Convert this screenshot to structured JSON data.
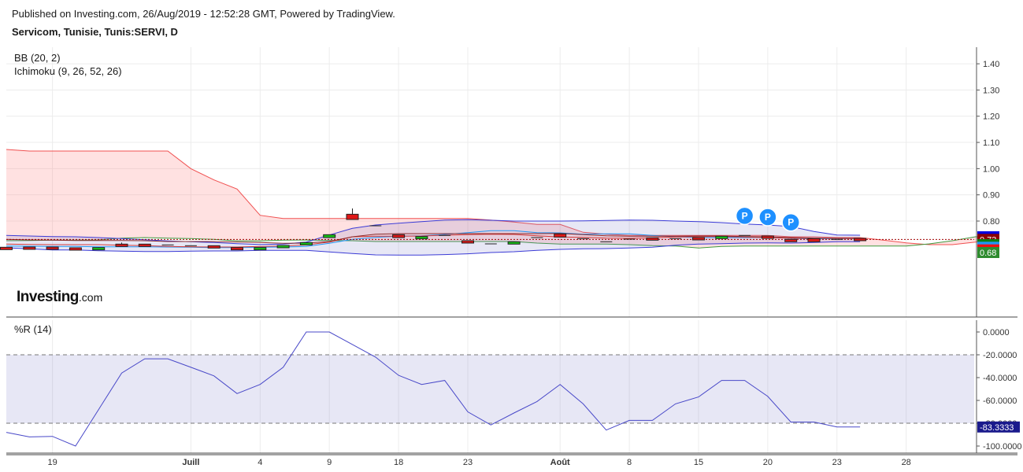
{
  "header": {
    "published": "Published on Investing.com, 26/Aug/2019 - 12:52:28 GMT, Powered by TradingView.",
    "symbol": "Servicom, Tunisie, Tunis:SERVI, D"
  },
  "indicators": {
    "bb": "BB (20, 2)",
    "ichimoku": "Ichimoku (9, 26, 52, 26)",
    "wr": "%R (14)"
  },
  "watermark": {
    "main": "Investing",
    "suffix": ".com"
  },
  "chart_data": [
    {
      "type": "candlestick",
      "title": "Servicom, Tunisie, Tunis:SERVI, D",
      "x_tick_labels": [
        "19",
        "Juill",
        "4",
        "9",
        "18",
        "23",
        "Août",
        "8",
        "15",
        "20",
        "23",
        "28"
      ],
      "x_tick_index": [
        2,
        8,
        11,
        14,
        17,
        20,
        24,
        27,
        30,
        33,
        36,
        39
      ],
      "y_ticks": [
        "1.40",
        "1.30",
        "1.20",
        "1.10",
        "1.00",
        "0.90",
        "0.80"
      ],
      "ylim": [
        0.675,
        1.44
      ],
      "price_labels": [
        {
          "text": "0.74",
          "value": 0.74,
          "color": "#0000dd"
        },
        {
          "text": "0.73",
          "value": 0.73,
          "color": "#8b0000"
        },
        {
          "text": "0.71",
          "value": 0.71,
          "color": "#0f7d0f"
        },
        {
          "text": "0.70",
          "value": 0.7,
          "color": "#2196f3"
        },
        {
          "text": "0.69",
          "value": 0.69,
          "color": "#ee1111"
        },
        {
          "text": "0.69",
          "value": 0.685,
          "color": "#ee1111"
        },
        {
          "text": "0.68",
          "value": 0.68,
          "color": "#2e8b2e"
        }
      ],
      "last_price_line": 0.73,
      "candles": [
        {
          "o": 0.7,
          "h": 0.7,
          "l": 0.696,
          "c": 0.698
        },
        {
          "o": 0.701,
          "h": 0.701,
          "l": 0.698,
          "c": 0.699
        },
        {
          "o": 0.701,
          "h": 0.701,
          "l": 0.698,
          "c": 0.699
        },
        {
          "o": 0.698,
          "h": 0.698,
          "l": 0.694,
          "c": 0.695
        },
        {
          "o": 0.694,
          "h": 0.7,
          "l": 0.694,
          "c": 0.699
        },
        {
          "o": 0.712,
          "h": 0.718,
          "l": 0.705,
          "c": 0.706
        },
        {
          "o": 0.712,
          "h": 0.712,
          "l": 0.707,
          "c": 0.709
        },
        {
          "o": 0.709,
          "h": 0.709,
          "l": 0.709,
          "c": 0.709
        },
        {
          "o": 0.706,
          "h": 0.706,
          "l": 0.706,
          "c": 0.706
        },
        {
          "o": 0.706,
          "h": 0.706,
          "l": 0.704,
          "c": 0.704
        },
        {
          "o": 0.699,
          "h": 0.699,
          "l": 0.697,
          "c": 0.697
        },
        {
          "o": 0.697,
          "h": 0.699,
          "l": 0.697,
          "c": 0.699
        },
        {
          "o": 0.705,
          "h": 0.707,
          "l": 0.705,
          "c": 0.707
        },
        {
          "o": 0.716,
          "h": 0.718,
          "l": 0.716,
          "c": 0.718
        },
        {
          "o": 0.737,
          "h": 0.748,
          "l": 0.737,
          "c": 0.748
        },
        {
          "o": 0.826,
          "h": 0.848,
          "l": 0.806,
          "c": 0.806
        },
        {
          "o": 0.782,
          "h": 0.782,
          "l": 0.782,
          "c": 0.782
        },
        {
          "o": 0.748,
          "h": 0.748,
          "l": 0.737,
          "c": 0.737
        },
        {
          "o": 0.732,
          "h": 0.741,
          "l": 0.732,
          "c": 0.741
        },
        {
          "o": 0.745,
          "h": 0.745,
          "l": 0.745,
          "c": 0.745
        },
        {
          "o": 0.725,
          "h": 0.725,
          "l": 0.721,
          "c": 0.721
        },
        {
          "o": 0.713,
          "h": 0.713,
          "l": 0.713,
          "c": 0.713
        },
        {
          "o": 0.714,
          "h": 0.721,
          "l": 0.714,
          "c": 0.721
        },
        {
          "o": 0.737,
          "h": 0.737,
          "l": 0.737,
          "c": 0.737
        },
        {
          "o": 0.751,
          "h": 0.751,
          "l": 0.739,
          "c": 0.739
        },
        {
          "o": 0.733,
          "h": 0.733,
          "l": 0.733,
          "c": 0.733
        },
        {
          "o": 0.721,
          "h": 0.721,
          "l": 0.721,
          "c": 0.721
        },
        {
          "o": 0.731,
          "h": 0.731,
          "l": 0.731,
          "c": 0.731
        },
        {
          "o": 0.736,
          "h": 0.736,
          "l": 0.728,
          "c": 0.728
        },
        {
          "o": 0.733,
          "h": 0.733,
          "l": 0.733,
          "c": 0.733
        },
        {
          "o": 0.737,
          "h": 0.737,
          "l": 0.732,
          "c": 0.732
        },
        {
          "o": 0.737,
          "h": 0.742,
          "l": 0.737,
          "c": 0.742
        },
        {
          "o": 0.745,
          "h": 0.745,
          "l": 0.745,
          "c": 0.745
        },
        {
          "o": 0.743,
          "h": 0.743,
          "l": 0.735,
          "c": 0.735
        },
        {
          "o": 0.73,
          "h": 0.73,
          "l": 0.721,
          "c": 0.721
        },
        {
          "o": 0.733,
          "h": 0.733,
          "l": 0.721,
          "c": 0.721
        },
        {
          "o": 0.73,
          "h": 0.73,
          "l": 0.73,
          "c": 0.73
        },
        {
          "o": 0.734,
          "h": 0.734,
          "l": 0.726,
          "c": 0.726
        }
      ],
      "bb_upper": [
        0.745,
        0.743,
        0.741,
        0.74,
        0.737,
        0.733,
        0.729,
        0.724,
        0.721,
        0.718,
        0.714,
        0.711,
        0.712,
        0.72,
        0.747,
        0.772,
        0.785,
        0.792,
        0.798,
        0.804,
        0.805,
        0.803,
        0.8,
        0.8,
        0.8,
        0.801,
        0.802,
        0.804,
        0.803,
        0.8,
        0.798,
        0.794,
        0.789,
        0.785,
        0.779,
        0.76,
        0.747,
        0.746
      ],
      "bb_mid": [
        0.705,
        0.704,
        0.703,
        0.703,
        0.702,
        0.702,
        0.702,
        0.701,
        0.7,
        0.699,
        0.699,
        0.7,
        0.701,
        0.703,
        0.715,
        0.73,
        0.738,
        0.742,
        0.744,
        0.749,
        0.756,
        0.763,
        0.763,
        0.756,
        0.755,
        0.75,
        0.751,
        0.751,
        0.745,
        0.74,
        0.737,
        0.737,
        0.737,
        0.738,
        0.734,
        0.732,
        0.733,
        0.733
      ],
      "bb_lower": [
        0.698,
        0.694,
        0.69,
        0.69,
        0.687,
        0.685,
        0.684,
        0.684,
        0.685,
        0.686,
        0.686,
        0.688,
        0.688,
        0.688,
        0.682,
        0.676,
        0.671,
        0.67,
        0.67,
        0.672,
        0.675,
        0.68,
        0.683,
        0.688,
        0.692,
        0.694,
        0.695,
        0.697,
        0.7,
        0.708,
        0.712,
        0.714,
        0.716,
        0.717,
        0.716,
        0.718,
        0.721,
        0.721
      ],
      "tenkan": [
        0.712,
        0.711,
        0.71,
        0.71,
        0.71,
        0.708,
        0.706,
        0.703,
        0.702,
        0.701,
        0.701,
        0.703,
        0.705,
        0.709,
        0.72,
        0.74,
        0.742,
        0.742,
        0.743,
        0.746,
        0.748,
        0.75,
        0.749,
        0.744,
        0.739,
        0.738,
        0.735,
        0.734,
        0.736,
        0.739,
        0.741,
        0.741,
        0.739,
        0.737,
        0.735,
        0.734,
        0.735,
        0.735
      ],
      "kijun": [
        0.73,
        0.728,
        0.727,
        0.726,
        0.726,
        0.726,
        0.725,
        0.722,
        0.722,
        0.722,
        0.72,
        0.718,
        0.715,
        0.716,
        0.722,
        0.74,
        0.75,
        0.752,
        0.752,
        0.752,
        0.752,
        0.752,
        0.752,
        0.752,
        0.753,
        0.748,
        0.744,
        0.742,
        0.742,
        0.742,
        0.743,
        0.743,
        0.741,
        0.74,
        0.737,
        0.735,
        0.734,
        0.733
      ],
      "senkou_a": [
        0.725,
        0.726,
        0.727,
        0.727,
        0.728,
        0.735,
        0.737,
        0.735,
        0.733,
        0.73,
        0.724,
        0.724,
        0.727,
        0.728,
        0.726,
        0.725,
        0.722,
        0.722,
        0.722,
        0.722,
        0.722,
        0.722,
        0.722,
        0.716,
        0.712,
        0.712,
        0.712,
        0.71,
        0.706,
        0.705,
        0.697,
        0.703,
        0.705,
        0.705,
        0.705,
        0.705,
        0.705,
        0.705,
        0.705,
        0.705,
        0.713,
        0.725,
        0.74,
        0.74
      ],
      "senkou_b": [
        1.073,
        1.067,
        1.067,
        1.067,
        1.067,
        1.067,
        1.067,
        1.067,
        1.0,
        0.957,
        0.922,
        0.822,
        0.81,
        0.81,
        0.81,
        0.81,
        0.81,
        0.81,
        0.81,
        0.81,
        0.81,
        0.804,
        0.796,
        0.787,
        0.787,
        0.757,
        0.75,
        0.745,
        0.745,
        0.745,
        0.745,
        0.745,
        0.745,
        0.745,
        0.74,
        0.74,
        0.737,
        0.737,
        0.727,
        0.717,
        0.71,
        0.71,
        0.72,
        0.732
      ],
      "markers": [
        {
          "index": 32,
          "value": 0.82,
          "label": "P"
        },
        {
          "index": 33,
          "value": 0.815,
          "label": "P"
        },
        {
          "index": 34,
          "value": 0.795,
          "label": "P"
        }
      ]
    },
    {
      "type": "line",
      "title": "%R (14)",
      "y_ticks": [
        "0.0000",
        "-20.0000",
        "-40.0000",
        "-60.0000",
        "-80.0000",
        "-100.0000"
      ],
      "ylim": [
        -102,
        0
      ],
      "bands": [
        -20,
        -80
      ],
      "last_value_label": "-83.3333",
      "values": [
        -88,
        -92,
        -91.5,
        -100,
        -68,
        -36,
        -23.5,
        -23.5,
        -31,
        -38.5,
        -54,
        -46,
        -31,
        0,
        0,
        -11,
        -22,
        -38,
        -46,
        -42.5,
        -70,
        -81.5,
        -71,
        -61,
        -46,
        -63,
        -86,
        -77.5,
        -77.5,
        -63,
        -57,
        -42.5,
        -42.5,
        -56.5,
        -79,
        -79,
        -83.3,
        -83.3
      ]
    }
  ]
}
